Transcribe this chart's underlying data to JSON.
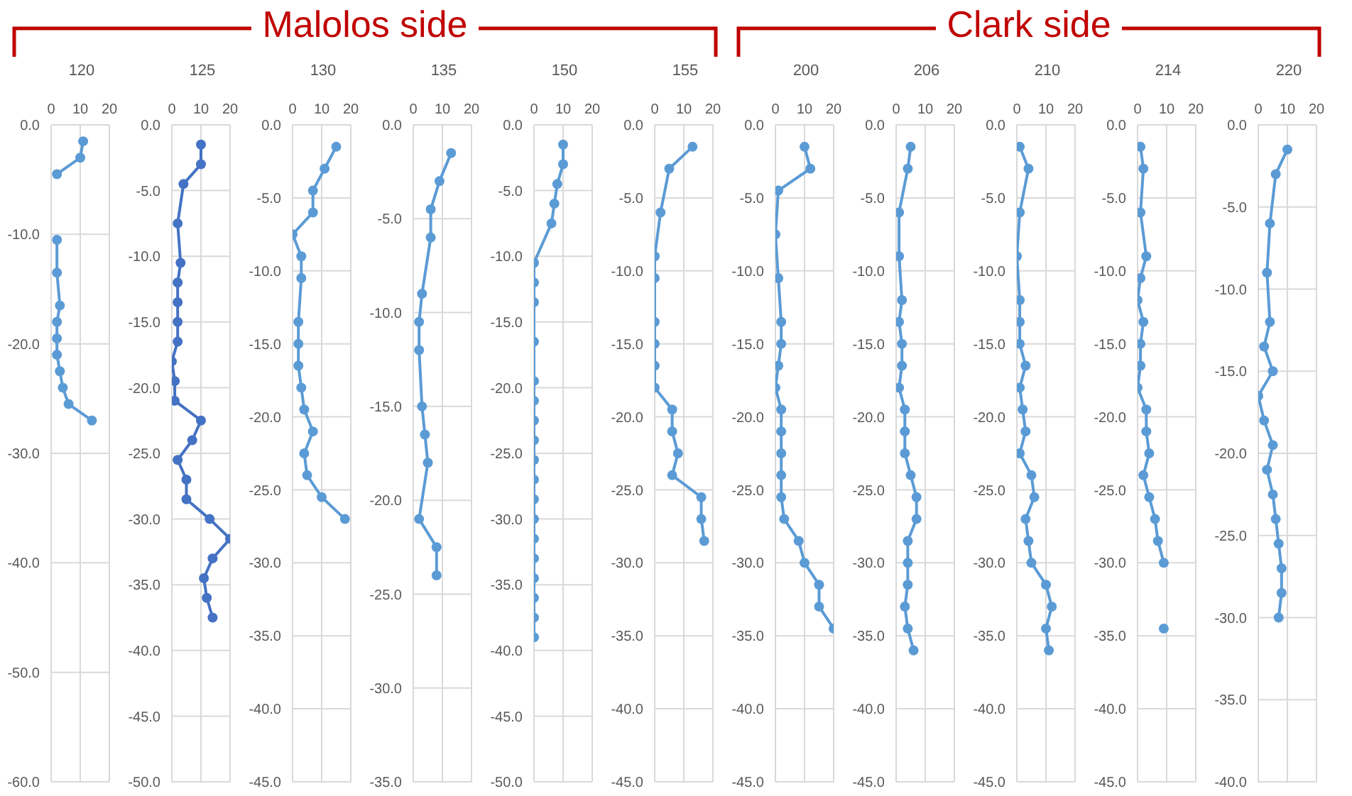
{
  "chart_data": [
    {
      "type": "line",
      "title": "120",
      "annotations": [
        "Malolos side"
      ],
      "xlim": [
        0,
        20
      ],
      "xticks": [
        0,
        10,
        20
      ],
      "ylim": [
        -60,
        0
      ],
      "yticks": [
        {
          "value": 0,
          "label": "0.0"
        },
        {
          "value": -10,
          "label": "-10.0"
        },
        {
          "value": -20,
          "label": "-20.0"
        },
        {
          "value": -30,
          "label": "-30.0"
        },
        {
          "value": -40,
          "label": "-40.0"
        },
        {
          "value": -50,
          "label": "-50.0"
        },
        {
          "value": -60,
          "label": "-60.0"
        }
      ],
      "grid": true,
      "marker": "circle",
      "series": [
        {
          "color": "#5b9bd5",
          "x": [
            11,
            10,
            2
          ],
          "values": [
            -1.5,
            -3,
            -4.5
          ]
        },
        {
          "color": "#5b9bd5",
          "x": [
            2,
            2,
            3,
            2,
            2,
            2,
            3,
            4,
            6,
            14
          ],
          "values": [
            -10.5,
            -13.5,
            -16.5,
            -18,
            -19.5,
            -21,
            -22.5,
            -24,
            -25.5,
            -27
          ]
        }
      ]
    },
    {
      "type": "line",
      "title": "125",
      "xlim": [
        0,
        20
      ],
      "xticks": [
        0,
        10,
        20
      ],
      "ylim": [
        -50,
        0
      ],
      "yticks": [
        {
          "value": 0,
          "label": "0.0"
        },
        {
          "value": -5,
          "label": "-5.0"
        },
        {
          "value": -10,
          "label": "-10.0"
        },
        {
          "value": -15,
          "label": "-15.0"
        },
        {
          "value": -20,
          "label": "-20.0"
        },
        {
          "value": -25,
          "label": "-25.0"
        },
        {
          "value": -30,
          "label": "-30.0"
        },
        {
          "value": -35,
          "label": "-35.0"
        },
        {
          "value": -40,
          "label": "-40.0"
        },
        {
          "value": -45,
          "label": "-45.0"
        },
        {
          "value": -50,
          "label": "-50.0"
        }
      ],
      "grid": true,
      "marker": "circle",
      "series": [
        {
          "color": "#4472c4",
          "x": [
            10,
            10,
            4,
            2,
            3,
            2,
            2,
            2,
            2,
            0,
            1,
            1,
            10,
            7,
            2,
            5,
            5,
            13,
            20,
            14,
            11,
            12,
            14
          ],
          "values": [
            -1.5,
            -3,
            -4.5,
            -7.5,
            -10.5,
            -12,
            -13.5,
            -15,
            -16.5,
            -18,
            -19.5,
            -21,
            -22.5,
            -24,
            -25.5,
            -27,
            -28.5,
            -30,
            -31.5,
            -33,
            -34.5,
            -36,
            -37.5
          ]
        }
      ]
    },
    {
      "type": "line",
      "title": "130",
      "xlim": [
        0,
        20
      ],
      "xticks": [
        0,
        10,
        20
      ],
      "ylim": [
        -45,
        0
      ],
      "yticks": [
        {
          "value": 0,
          "label": "0.0"
        },
        {
          "value": -5,
          "label": "-5.0"
        },
        {
          "value": -10,
          "label": "-10.0"
        },
        {
          "value": -15,
          "label": "-15.0"
        },
        {
          "value": -20,
          "label": "-20.0"
        },
        {
          "value": -25,
          "label": "-25.0"
        },
        {
          "value": -30,
          "label": "-30.0"
        },
        {
          "value": -35,
          "label": "-35.0"
        },
        {
          "value": -40,
          "label": "-40.0"
        },
        {
          "value": -45,
          "label": "-45.0"
        }
      ],
      "grid": true,
      "marker": "circle",
      "series": [
        {
          "color": "#5b9bd5",
          "x": [
            15,
            11,
            7,
            7,
            0,
            3,
            3,
            2,
            2,
            2,
            3,
            4,
            7,
            4,
            5,
            10,
            18
          ],
          "values": [
            -1.5,
            -3,
            -4.5,
            -6,
            -7.5,
            -9,
            -10.5,
            -13.5,
            -15,
            -16.5,
            -18,
            -19.5,
            -21,
            -22.5,
            -24,
            -25.5,
            -27
          ]
        }
      ]
    },
    {
      "type": "line",
      "title": "135",
      "xlim": [
        0,
        20
      ],
      "xticks": [
        0,
        10,
        20
      ],
      "ylim": [
        -35,
        0
      ],
      "yticks": [
        {
          "value": 0,
          "label": "0.0"
        },
        {
          "value": -5,
          "label": "-5.0"
        },
        {
          "value": -10,
          "label": "-10.0"
        },
        {
          "value": -15,
          "label": "-15.0"
        },
        {
          "value": -20,
          "label": "-20.0"
        },
        {
          "value": -25,
          "label": "-25.0"
        },
        {
          "value": -30,
          "label": "-30.0"
        },
        {
          "value": -35,
          "label": "-35.0"
        }
      ],
      "grid": true,
      "marker": "circle",
      "series": [
        {
          "color": "#5b9bd5",
          "x": [
            13,
            9,
            6,
            6,
            3,
            2,
            2,
            3,
            4,
            5,
            2,
            8,
            8
          ],
          "values": [
            -1.5,
            -3,
            -4.5,
            -6,
            -9,
            -10.5,
            -12,
            -15,
            -16.5,
            -18,
            -21,
            -22.5,
            -24
          ]
        }
      ]
    },
    {
      "type": "line",
      "title": "150",
      "xlim": [
        0,
        20
      ],
      "xticks": [
        0,
        10,
        20
      ],
      "ylim": [
        -50,
        0
      ],
      "yticks": [
        {
          "value": 0,
          "label": "0.0"
        },
        {
          "value": -5,
          "label": "-5.0"
        },
        {
          "value": -10,
          "label": "-10.0"
        },
        {
          "value": -15,
          "label": "-15.0"
        },
        {
          "value": -20,
          "label": "-20.0"
        },
        {
          "value": -25,
          "label": "-25.0"
        },
        {
          "value": -30,
          "label": "-30.0"
        },
        {
          "value": -35,
          "label": "-35.0"
        },
        {
          "value": -40,
          "label": "-40.0"
        },
        {
          "value": -45,
          "label": "-45.0"
        },
        {
          "value": -50,
          "label": "-50.0"
        }
      ],
      "grid": true,
      "marker": "circle",
      "series": [
        {
          "color": "#5b9bd5",
          "x": [
            10,
            10,
            8,
            7,
            6,
            0,
            0,
            0,
            0,
            0,
            0,
            0,
            0,
            0,
            0,
            0,
            0,
            0,
            0,
            0,
            0,
            0,
            0
          ],
          "values": [
            -1.5,
            -3,
            -4.5,
            -6,
            -7.5,
            -10.5,
            -12,
            -13.5,
            -16.5,
            -19.5,
            -21,
            -22.5,
            -24,
            -25.5,
            -27,
            -28.5,
            -30,
            -31.5,
            -33,
            -34.5,
            -36,
            -37.5,
            -39
          ]
        }
      ]
    },
    {
      "type": "line",
      "title": "155",
      "xlim": [
        0,
        20
      ],
      "xticks": [
        0,
        10,
        20
      ],
      "ylim": [
        -45,
        0
      ],
      "yticks": [
        {
          "value": 0,
          "label": "0.0"
        },
        {
          "value": -5,
          "label": "-5.0"
        },
        {
          "value": -10,
          "label": "-10.0"
        },
        {
          "value": -15,
          "label": "-15.0"
        },
        {
          "value": -20,
          "label": "-20.0"
        },
        {
          "value": -25,
          "label": "-25.0"
        },
        {
          "value": -30,
          "label": "-30.0"
        },
        {
          "value": -35,
          "label": "-35.0"
        },
        {
          "value": -40,
          "label": "-40.0"
        },
        {
          "value": -45,
          "label": "-45.0"
        }
      ],
      "grid": true,
      "marker": "circle",
      "series": [
        {
          "color": "#5b9bd5",
          "x": [
            13,
            5,
            2,
            0,
            0,
            0,
            0,
            0,
            0,
            6,
            6,
            8,
            6,
            16,
            16,
            17
          ],
          "values": [
            -1.5,
            -3,
            -6,
            -9,
            -10.5,
            -13.5,
            -15,
            -16.5,
            -18,
            -19.5,
            -21,
            -22.5,
            -24,
            -25.5,
            -27,
            -28.5
          ]
        }
      ]
    },
    {
      "type": "line",
      "title": "200",
      "annotations": [
        "Clark side"
      ],
      "xlim": [
        0,
        20
      ],
      "xticks": [
        0,
        10,
        20
      ],
      "ylim": [
        -45,
        0
      ],
      "yticks": [
        {
          "value": 0,
          "label": "0.0"
        },
        {
          "value": -5,
          "label": "-5.0"
        },
        {
          "value": -10,
          "label": "-10.0"
        },
        {
          "value": -15,
          "label": "-15.0"
        },
        {
          "value": -20,
          "label": "-20.0"
        },
        {
          "value": -25,
          "label": "-25.0"
        },
        {
          "value": -30,
          "label": "-30.0"
        },
        {
          "value": -35,
          "label": "-35.0"
        },
        {
          "value": -40,
          "label": "-40.0"
        },
        {
          "value": -45,
          "label": "-45.0"
        }
      ],
      "grid": true,
      "marker": "circle",
      "series": [
        {
          "color": "#5b9bd5",
          "x": [
            10,
            12,
            1,
            0,
            1,
            2,
            2,
            1,
            0,
            2,
            2,
            2,
            2,
            2,
            3,
            8,
            10,
            15,
            15,
            20
          ],
          "values": [
            -1.5,
            -3,
            -4.5,
            -7.5,
            -10.5,
            -13.5,
            -15,
            -16.5,
            -18,
            -19.5,
            -21,
            -22.5,
            -24,
            -25.5,
            -27,
            -28.5,
            -30,
            -31.5,
            -33,
            -34.5
          ]
        }
      ]
    },
    {
      "type": "line",
      "title": "206",
      "xlim": [
        0,
        20
      ],
      "xticks": [
        0,
        10,
        20
      ],
      "ylim": [
        -45,
        0
      ],
      "yticks": [
        {
          "value": 0,
          "label": "0.0"
        },
        {
          "value": -5,
          "label": "-5.0"
        },
        {
          "value": -10,
          "label": "-10.0"
        },
        {
          "value": -15,
          "label": "-15.0"
        },
        {
          "value": -20,
          "label": "-20.0"
        },
        {
          "value": -25,
          "label": "-25.0"
        },
        {
          "value": -30,
          "label": "-30.0"
        },
        {
          "value": -35,
          "label": "-35.0"
        },
        {
          "value": -40,
          "label": "-40.0"
        },
        {
          "value": -45,
          "label": "-45.0"
        }
      ],
      "grid": true,
      "marker": "circle",
      "series": [
        {
          "color": "#5b9bd5",
          "x": [
            5,
            4,
            1,
            1,
            2,
            1,
            2,
            2,
            1,
            3,
            3,
            3,
            5,
            7,
            7,
            4,
            4,
            4,
            3,
            4,
            6
          ],
          "values": [
            -1.5,
            -3,
            -6,
            -9,
            -12,
            -13.5,
            -15,
            -16.5,
            -18,
            -19.5,
            -21,
            -22.5,
            -24,
            -25.5,
            -27,
            -28.5,
            -30,
            -31.5,
            -33,
            -34.5,
            -36
          ]
        }
      ]
    },
    {
      "type": "line",
      "title": "210",
      "xlim": [
        0,
        20
      ],
      "xticks": [
        0,
        10,
        20
      ],
      "ylim": [
        -45,
        0
      ],
      "yticks": [
        {
          "value": 0,
          "label": "0.0"
        },
        {
          "value": -5,
          "label": "-5.0"
        },
        {
          "value": -10,
          "label": "-10.0"
        },
        {
          "value": -15,
          "label": "-15.0"
        },
        {
          "value": -20,
          "label": "-20.0"
        },
        {
          "value": -25,
          "label": "-25.0"
        },
        {
          "value": -30,
          "label": "-30.0"
        },
        {
          "value": -35,
          "label": "-35.0"
        },
        {
          "value": -40,
          "label": "-40.0"
        },
        {
          "value": -45,
          "label": "-45.0"
        }
      ],
      "grid": true,
      "marker": "circle",
      "series": [
        {
          "color": "#5b9bd5",
          "x": [
            1,
            4,
            1,
            0,
            1,
            1,
            1,
            3,
            1,
            2,
            3,
            1,
            5,
            6,
            3,
            4,
            5,
            10,
            12,
            10,
            11
          ],
          "values": [
            -1.5,
            -3,
            -6,
            -9,
            -12,
            -13.5,
            -15,
            -16.5,
            -18,
            -19.5,
            -21,
            -22.5,
            -24,
            -25.5,
            -27,
            -28.5,
            -30,
            -31.5,
            -33,
            -34.5,
            -36
          ]
        }
      ]
    },
    {
      "type": "line",
      "title": "214",
      "xlim": [
        0,
        20
      ],
      "xticks": [
        0,
        10,
        20
      ],
      "ylim": [
        -45,
        0
      ],
      "yticks": [
        {
          "value": 0,
          "label": "0.0"
        },
        {
          "value": -5,
          "label": "-5.0"
        },
        {
          "value": -10,
          "label": "-10.0"
        },
        {
          "value": -15,
          "label": "-15.0"
        },
        {
          "value": -20,
          "label": "-20.0"
        },
        {
          "value": -25,
          "label": "-25.0"
        },
        {
          "value": -30,
          "label": "-30.0"
        },
        {
          "value": -35,
          "label": "-35.0"
        },
        {
          "value": -40,
          "label": "-40.0"
        },
        {
          "value": -45,
          "label": "-45.0"
        }
      ],
      "grid": true,
      "marker": "circle",
      "series": [
        {
          "color": "#5b9bd5",
          "x": [
            1,
            2,
            1,
            3,
            1,
            0,
            2,
            1,
            1,
            0,
            3,
            3,
            4,
            2,
            4,
            6,
            7,
            9
          ],
          "values": [
            -1.5,
            -3,
            -6,
            -9,
            -10.5,
            -12,
            -13.5,
            -15,
            -16.5,
            -18,
            -19.5,
            -21,
            -22.5,
            -24,
            -25.5,
            -27,
            -28.5,
            -30
          ]
        },
        {
          "color": "#5b9bd5",
          "x": [
            9
          ],
          "values": [
            -34.5
          ]
        }
      ]
    },
    {
      "type": "line",
      "title": "220",
      "xlim": [
        0,
        20
      ],
      "xticks": [
        0,
        10,
        20
      ],
      "ylim": [
        -40,
        0
      ],
      "yticks": [
        {
          "value": 0,
          "label": "0.0"
        },
        {
          "value": -5,
          "label": "-5.0"
        },
        {
          "value": -10,
          "label": "-10.0"
        },
        {
          "value": -15,
          "label": "-15.0"
        },
        {
          "value": -20,
          "label": "-20.0"
        },
        {
          "value": -25,
          "label": "-25.0"
        },
        {
          "value": -30,
          "label": "-30.0"
        },
        {
          "value": -35,
          "label": "-35.0"
        },
        {
          "value": -40,
          "label": "-40.0"
        }
      ],
      "grid": true,
      "marker": "circle",
      "series": [
        {
          "color": "#5b9bd5",
          "x": [
            10,
            6,
            4,
            3,
            4,
            2,
            5,
            0,
            2,
            5,
            3,
            5,
            6,
            7,
            8,
            8,
            7
          ],
          "values": [
            -1.5,
            -3,
            -6,
            -9,
            -12,
            -13.5,
            -15,
            -16.5,
            -18,
            -19.5,
            -21,
            -22.5,
            -24,
            -25.5,
            -27,
            -28.5,
            -30
          ]
        }
      ]
    }
  ]
}
